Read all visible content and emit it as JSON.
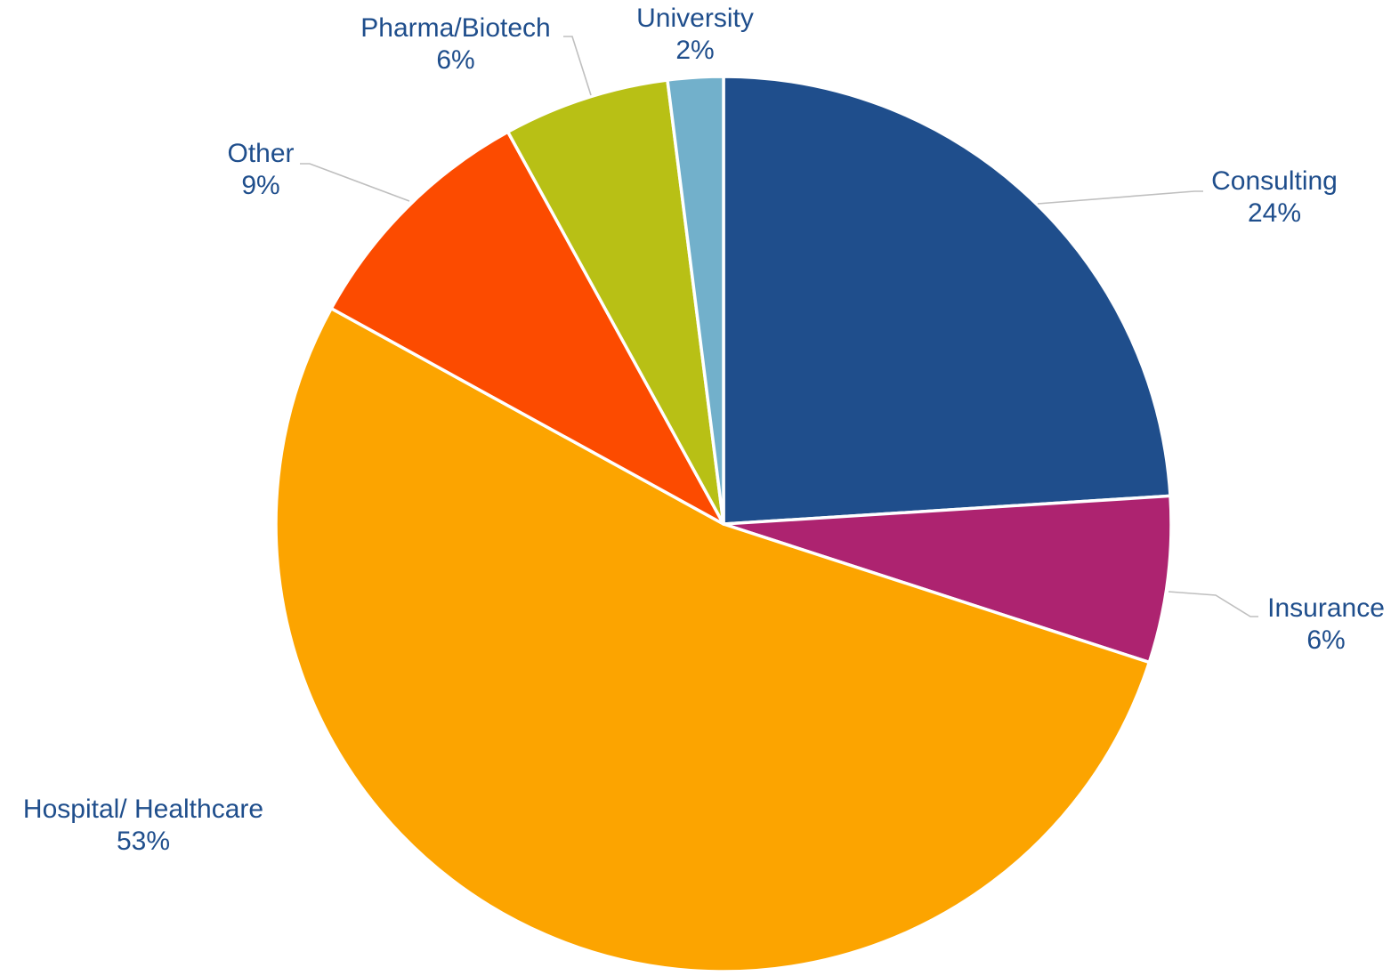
{
  "chart_data": {
    "type": "pie",
    "title": "",
    "start_angle_deg": 0,
    "direction": "clockwise",
    "slices": [
      {
        "label": "Consulting",
        "value": 24,
        "value_label": "24%",
        "color": "#1F4E8C"
      },
      {
        "label": "Insurance",
        "value": 6,
        "value_label": "6%",
        "color": "#AD2370"
      },
      {
        "label": "Hospital/ Healthcare",
        "value": 53,
        "value_label": "53%",
        "color": "#FCA400"
      },
      {
        "label": "Other",
        "value": 9,
        "value_label": "9%",
        "color": "#FC4B00"
      },
      {
        "label": "Pharma/Biotech",
        "value": 6,
        "value_label": "6%",
        "color": "#B8C015"
      },
      {
        "label": "University",
        "value": 2,
        "value_label": "2%",
        "color": "#72B0CB"
      }
    ],
    "legend": "none",
    "label_color": "#1F4E8C",
    "leader_line_color": "#BFBFBF"
  }
}
